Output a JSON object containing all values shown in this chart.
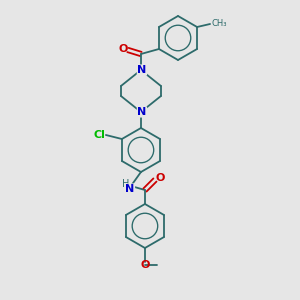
{
  "background_color": "#e6e6e6",
  "bond_color": "#2d6b6b",
  "atom_colors": {
    "N": "#0000cc",
    "O": "#cc0000",
    "Cl": "#00bb00",
    "C": "#2d6b6b"
  },
  "figsize": [
    3.0,
    3.0
  ],
  "dpi": 100,
  "bond_lw": 1.3,
  "ring_r": 22,
  "font_size_atom": 7,
  "font_size_small": 6
}
